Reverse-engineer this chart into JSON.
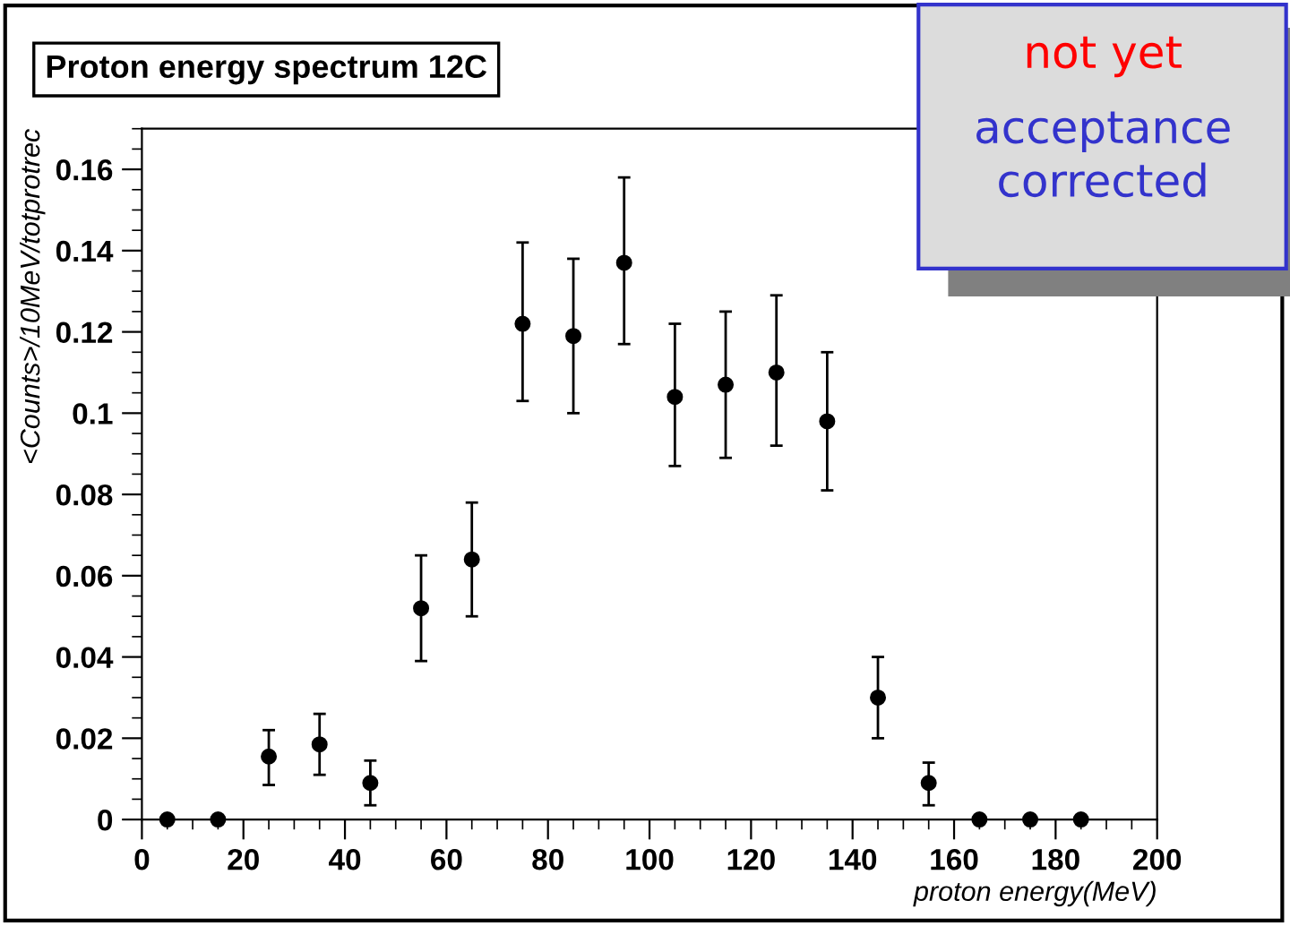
{
  "chart_data": {
    "type": "scatter",
    "title": "Proton energy spectrum 12C",
    "xlabel": "proton energy(MeV)",
    "ylabel": "<Counts>/10MeV/totprotrec",
    "x": [
      5,
      15,
      25,
      35,
      45,
      55,
      65,
      75,
      85,
      95,
      105,
      115,
      125,
      135,
      145,
      155,
      165,
      175,
      185
    ],
    "series": [
      {
        "color": "#000000",
        "values": [
          0,
          0,
          0.0155,
          0.0185,
          0.009,
          0.052,
          0.064,
          0.122,
          0.119,
          0.137,
          0.104,
          0.107,
          0.11,
          0.098,
          0.03,
          0.009,
          0,
          0,
          0
        ],
        "errors": [
          null,
          null,
          [
            0.0085,
            0.022
          ],
          [
            0.011,
            0.026
          ],
          [
            0.0035,
            0.0145
          ],
          [
            0.039,
            0.065
          ],
          [
            0.05,
            0.078
          ],
          [
            0.103,
            0.142
          ],
          [
            0.1,
            0.138
          ],
          [
            0.117,
            0.158
          ],
          [
            0.087,
            0.122
          ],
          [
            0.089,
            0.125
          ],
          [
            0.092,
            0.129
          ],
          [
            0.081,
            0.115
          ],
          [
            0.02,
            0.04
          ],
          [
            0.0035,
            0.014
          ],
          null,
          null,
          null
        ]
      }
    ],
    "xlim": [
      0,
      200
    ],
    "xticks": [
      0,
      20,
      40,
      60,
      80,
      100,
      120,
      140,
      160,
      180,
      200
    ],
    "ylim": [
      0,
      0.17
    ],
    "yticks": [
      0,
      0.02,
      0.04,
      0.06,
      0.08,
      0.1,
      0.12,
      0.14,
      0.16
    ],
    "marker": "circle",
    "grid": false,
    "annotations": [
      "not yet",
      "acceptance\ncorrected"
    ]
  }
}
